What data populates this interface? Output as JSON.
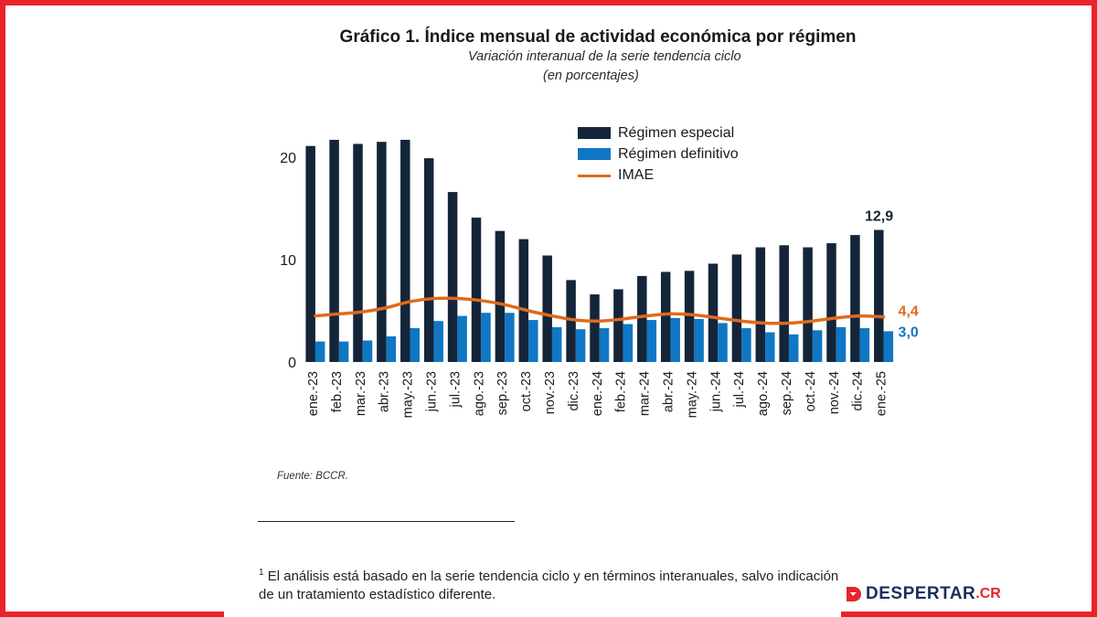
{
  "title": "Gráfico 1. Índice mensual de actividad económica por régimen",
  "subtitle": "Variación interanual de la serie tendencia ciclo",
  "subtitle2": "(en porcentajes)",
  "source": "Fuente:  BCCR.",
  "footnote_marker": "1",
  "footnote_line1": " El análisis está basado en la serie tendencia ciclo y en términos interanuales, salvo indicación",
  "footnote_line2": "de un tratamiento estadístico diferente.",
  "logo": {
    "text": "DESPERTAR",
    "suffix": ".CR"
  },
  "colors": {
    "especial": "#14253a",
    "definitivo": "#0f77c4",
    "imae": "#e06a1c",
    "frame": "#e8232a"
  },
  "chart_data": {
    "type": "bar",
    "categories": [
      "ene.-23",
      "feb.-23",
      "mar.-23",
      "abr.-23",
      "may.-23",
      "jun.-23",
      "jul.-23",
      "ago.-23",
      "sep.-23",
      "oct.-23",
      "nov.-23",
      "dic.-23",
      "ene.-24",
      "feb.-24",
      "mar.-24",
      "abr.-24",
      "may.-24",
      "jun.-24",
      "jul.-24",
      "ago.-24",
      "sep.-24",
      "oct.-24",
      "nov.-24",
      "dic.-24",
      "ene.-25"
    ],
    "series": [
      {
        "name": "Régimen especial",
        "type": "bar",
        "values": [
          21.1,
          21.7,
          21.3,
          21.5,
          21.7,
          19.9,
          16.6,
          14.1,
          12.8,
          12.0,
          10.4,
          8.0,
          6.6,
          7.1,
          8.4,
          8.8,
          8.9,
          9.6,
          10.5,
          11.2,
          11.4,
          11.2,
          11.6,
          12.4,
          12.9
        ]
      },
      {
        "name": "Régimen definitivo",
        "type": "bar",
        "values": [
          2.0,
          2.0,
          2.1,
          2.5,
          3.3,
          4.0,
          4.5,
          4.8,
          4.8,
          4.1,
          3.4,
          3.2,
          3.3,
          3.7,
          4.1,
          4.3,
          4.2,
          3.8,
          3.3,
          2.9,
          2.7,
          3.1,
          3.4,
          3.3,
          3.0
        ]
      },
      {
        "name": "IMAE",
        "type": "line",
        "values": [
          4.5,
          4.7,
          4.9,
          5.3,
          5.9,
          6.2,
          6.2,
          6.0,
          5.6,
          5.0,
          4.5,
          4.1,
          4.0,
          4.2,
          4.5,
          4.7,
          4.6,
          4.3,
          4.0,
          3.8,
          3.8,
          4.0,
          4.3,
          4.5,
          4.4
        ]
      }
    ],
    "ylim": [
      0,
      23
    ],
    "yticks": [
      0,
      10,
      20
    ],
    "annotations": [
      {
        "series": "Régimen especial",
        "text": "12,9"
      },
      {
        "series": "IMAE",
        "text": "4,4"
      },
      {
        "series": "Régimen definitivo",
        "text": "3,0"
      }
    ],
    "legend": "top-right",
    "grid": false
  }
}
